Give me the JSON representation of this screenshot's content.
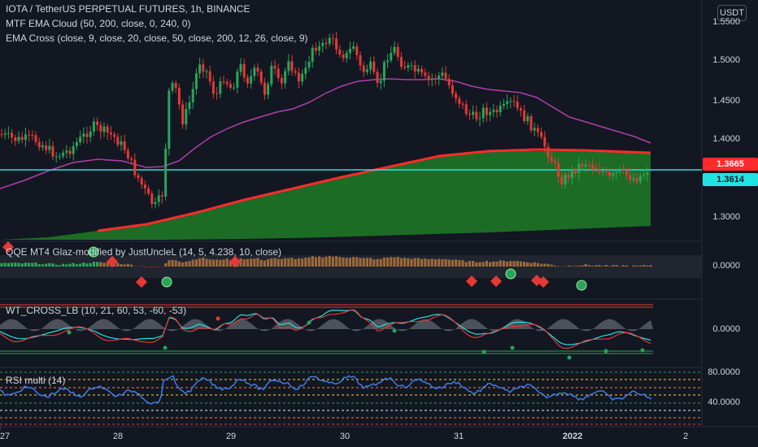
{
  "legend": {
    "symbol": "IOTA / TetherUS PERPETUAL FUTURES, 1h, BINANCE",
    "indicator1": "MTF EMA Cloud (50, 200, close, 0, 240, 0)",
    "indicator2": "EMA Cross (close, 9, close, 20, close, 50, close, 200, 12, 26, close, 9)",
    "qqe": "QQE MT4 Glaz-modified by JustUncleL (14, 5, 4.238, 10, close)",
    "wt": "WT_CROSS_LB (10, 21, 60, 53, -60, -53)",
    "rsi": "RSI multi (14)"
  },
  "currency": "USDT",
  "price_axis": [
    "1.5500",
    "1.5000",
    "1.4500",
    "1.4000",
    "1.3000"
  ],
  "current_price": "1.3665",
  "line_price": "1.3614",
  "qqe_axis": "0.0000",
  "wt_axis": "0.0000",
  "rsi_axis": [
    "80.0000",
    "40.0000"
  ],
  "dates": [
    {
      "label": "27",
      "bold": false
    },
    {
      "label": "28",
      "bold": false
    },
    {
      "label": "29",
      "bold": false
    },
    {
      "label": "30",
      "bold": false
    },
    {
      "label": "31",
      "bold": false
    },
    {
      "label": "2022",
      "bold": true
    },
    {
      "label": "2",
      "bold": false
    }
  ],
  "colors": {
    "bg": "#131722",
    "up": "#26a65b",
    "down": "#e53935",
    "ema50": "#b03fa8",
    "ema200": "#ff2a2a",
    "cloud": "#1e7b26",
    "cyan_line": "#22e3e3",
    "rsi": "#3e7be8"
  }
}
